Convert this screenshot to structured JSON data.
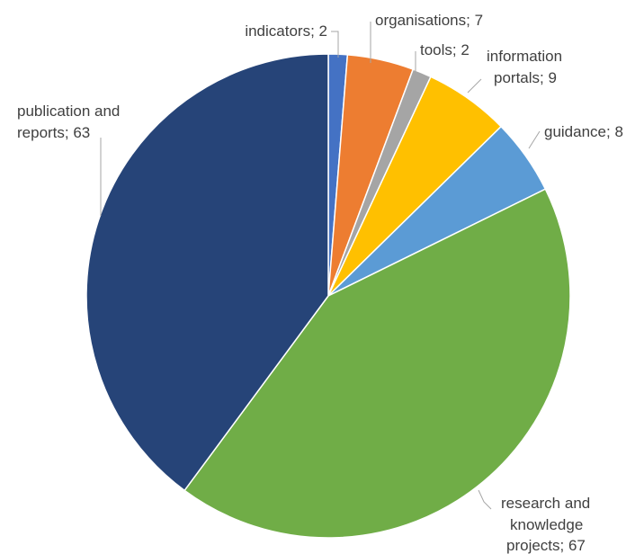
{
  "chart_data": {
    "type": "pie",
    "start_angle_deg": 0,
    "direction": "clockwise",
    "slices": [
      {
        "label": "indicators",
        "value": 2,
        "color": "#4472c4",
        "label_lines": [
          "indicators; 2"
        ]
      },
      {
        "label": "organisations",
        "value": 7,
        "color": "#ed7d31",
        "label_lines": [
          "organisations; 7"
        ]
      },
      {
        "label": "tools",
        "value": 2,
        "color": "#a5a5a5",
        "label_lines": [
          "tools; 2"
        ]
      },
      {
        "label": "information portals",
        "value": 9,
        "color": "#ffc000",
        "label_lines": [
          "information",
          "portals; 9"
        ]
      },
      {
        "label": "guidance",
        "value": 8,
        "color": "#5b9bd5",
        "label_lines": [
          "guidance; 8"
        ]
      },
      {
        "label": "research and knowledge projects",
        "value": 67,
        "color": "#70ad47",
        "label_lines": [
          "research and",
          "knowledge",
          "projects; 67"
        ]
      },
      {
        "label": "publication and reports",
        "value": 63,
        "color": "#264478",
        "label_lines": [
          "publication and",
          "reports; 63"
        ]
      }
    ]
  }
}
